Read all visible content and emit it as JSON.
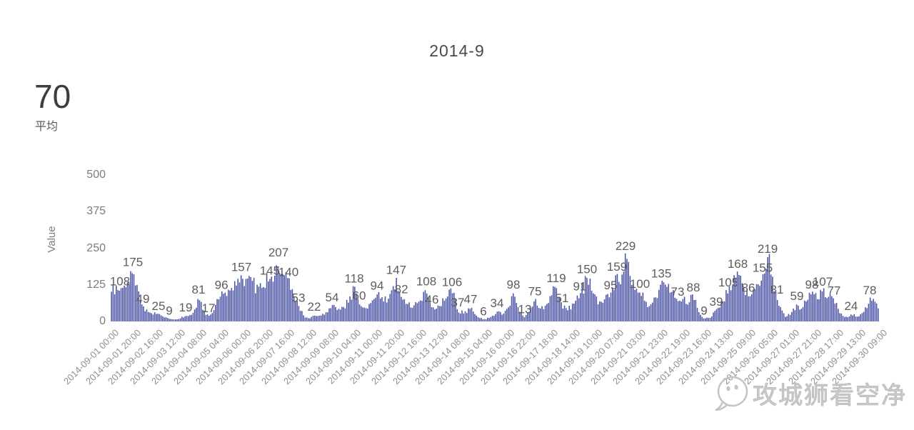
{
  "summary": {
    "average_value": "70",
    "average_label": "平均"
  },
  "watermark": {
    "text": "攻城狮看空净",
    "icon": "wechat-chat-bubble-face-icon"
  },
  "colors": {
    "bar": "#4b53a5",
    "value_label": "#5c5c5c",
    "axis_text": "#7d7d7d",
    "x_tick_text": "#8f8f8f",
    "title_text": "#4a4a4a",
    "watermark_gray": "#c4c4c4"
  },
  "chart_data": {
    "type": "bar",
    "title": "2014-9",
    "subtitle": "",
    "xlabel": "",
    "ylabel": "Value",
    "ylim": [
      0,
      500
    ],
    "yticks": [
      0,
      125,
      250,
      375,
      500
    ],
    "grid": false,
    "legend": false,
    "average_shown": 70,
    "x_tick_labels": [
      "2014-09-01 00:00",
      "2014-09-01 20:00",
      "2014-09-02 16:00",
      "2014-09-03 12:00",
      "2014-09-04 08:00",
      "2014-09-05 04:00",
      "2014-09-06 00:00",
      "2014-09-06 20:00",
      "2014-09-07 16:00",
      "2014-09-08 12:00",
      "2014-09-09 08:00",
      "2014-09-10 04:00",
      "2014-09-11 00:00",
      "2014-09-11 20:00",
      "2014-09-12 16:00",
      "2014-09-13 12:00",
      "2014-09-14 08:00",
      "2014-09-15 04:00",
      "2014-09-16 00:00",
      "2014-09-16 22:00",
      "2014-09-17 18:00",
      "2014-09-18 14:00",
      "2014-09-19 10:00",
      "2014-09-20 07:00",
      "2014-09-21 03:00",
      "2014-09-21 23:00",
      "2014-09-22 19:00",
      "2014-09-23 16:00",
      "2014-09-24 13:00",
      "2014-09-25 09:00",
      "2014-09-26 05:00",
      "2014-09-27 01:00",
      "2014-09-27 21:00",
      "2014-09-28 17:00",
      "2014-09-29 13:00",
      "2014-09-30 09:00"
    ],
    "bar_value_labels": [
      108,
      175,
      49,
      25,
      9,
      19,
      81,
      17,
      96,
      157,
      145,
      207,
      140,
      53,
      22,
      54,
      118,
      60,
      94,
      147,
      82,
      108,
      46,
      106,
      37,
      47,
      6,
      34,
      98,
      13,
      75,
      119,
      51,
      91,
      150,
      95,
      159,
      229,
      100,
      135,
      73,
      88,
      9,
      39,
      105,
      168,
      86,
      155,
      219,
      81,
      59,
      98,
      107,
      77,
      24,
      78
    ],
    "profile": [
      [
        0.0,
        105,
        null
      ],
      [
        0.0121,
        108,
        "108"
      ],
      [
        0.0214,
        130,
        null
      ],
      [
        0.0288,
        175,
        "175"
      ],
      [
        0.0353,
        118,
        null
      ],
      [
        0.0418,
        49,
        "49"
      ],
      [
        0.0511,
        30,
        null
      ],
      [
        0.0623,
        25,
        "25"
      ],
      [
        0.0697,
        14,
        null
      ],
      [
        0.0762,
        9,
        "9"
      ],
      [
        0.0864,
        7,
        null
      ],
      [
        0.0976,
        19,
        "19"
      ],
      [
        0.1069,
        28,
        null
      ],
      [
        0.1143,
        81,
        "81"
      ],
      [
        0.1208,
        38,
        null
      ],
      [
        0.1273,
        17,
        "17"
      ],
      [
        0.1348,
        42,
        null
      ],
      [
        0.1441,
        96,
        "96"
      ],
      [
        0.1533,
        108,
        null
      ],
      [
        0.1626,
        135,
        null
      ],
      [
        0.1701,
        157,
        "157"
      ],
      [
        0.1775,
        148,
        null
      ],
      [
        0.1849,
        132,
        null
      ],
      [
        0.1924,
        118,
        null
      ],
      [
        0.1998,
        128,
        null
      ],
      [
        0.2072,
        145,
        "145"
      ],
      [
        0.2138,
        158,
        null
      ],
      [
        0.2184,
        207,
        "207"
      ],
      [
        0.2249,
        150,
        null
      ],
      [
        0.2314,
        140,
        "140"
      ],
      [
        0.2379,
        95,
        null
      ],
      [
        0.2444,
        53,
        "53"
      ],
      [
        0.2519,
        16,
        null
      ],
      [
        0.2584,
        9,
        null
      ],
      [
        0.2649,
        22,
        "22"
      ],
      [
        0.2732,
        17,
        null
      ],
      [
        0.2807,
        32,
        null
      ],
      [
        0.2881,
        54,
        "54"
      ],
      [
        0.2955,
        36,
        null
      ],
      [
        0.303,
        48,
        null
      ],
      [
        0.3104,
        72,
        null
      ],
      [
        0.3169,
        118,
        "118"
      ],
      [
        0.3234,
        60,
        "60"
      ],
      [
        0.3309,
        46,
        null
      ],
      [
        0.3383,
        62,
        null
      ],
      [
        0.3467,
        94,
        "94"
      ],
      [
        0.355,
        68,
        null
      ],
      [
        0.3643,
        92,
        null
      ],
      [
        0.3717,
        147,
        "147"
      ],
      [
        0.3783,
        82,
        "82"
      ],
      [
        0.3857,
        58,
        null
      ],
      [
        0.3941,
        52,
        null
      ],
      [
        0.4024,
        70,
        null
      ],
      [
        0.4108,
        108,
        "108"
      ],
      [
        0.4182,
        46,
        "46"
      ],
      [
        0.4266,
        52,
        null
      ],
      [
        0.4359,
        72,
        null
      ],
      [
        0.4442,
        106,
        "106"
      ],
      [
        0.4517,
        37,
        "37"
      ],
      [
        0.46,
        28,
        null
      ],
      [
        0.4684,
        47,
        "47"
      ],
      [
        0.4768,
        18,
        null
      ],
      [
        0.4851,
        6,
        "6"
      ],
      [
        0.4944,
        14,
        null
      ],
      [
        0.5028,
        34,
        "34"
      ],
      [
        0.5102,
        22,
        null
      ],
      [
        0.5177,
        48,
        null
      ],
      [
        0.5242,
        98,
        "98"
      ],
      [
        0.5316,
        36,
        null
      ],
      [
        0.539,
        13,
        "13"
      ],
      [
        0.5456,
        38,
        null
      ],
      [
        0.5521,
        75,
        "75"
      ],
      [
        0.5595,
        44,
        null
      ],
      [
        0.566,
        56,
        null
      ],
      [
        0.5725,
        82,
        null
      ],
      [
        0.5799,
        119,
        "119"
      ],
      [
        0.5874,
        51,
        "51"
      ],
      [
        0.5948,
        38,
        null
      ],
      [
        0.6022,
        62,
        null
      ],
      [
        0.6106,
        91,
        "91"
      ],
      [
        0.6199,
        150,
        "150"
      ],
      [
        0.6273,
        98,
        null
      ],
      [
        0.6348,
        58,
        null
      ],
      [
        0.6431,
        76,
        null
      ],
      [
        0.6506,
        95,
        "95"
      ],
      [
        0.6589,
        159,
        "159"
      ],
      [
        0.6645,
        128,
        null
      ],
      [
        0.6701,
        229,
        "229"
      ],
      [
        0.6766,
        142,
        null
      ],
      [
        0.6822,
        108,
        null
      ],
      [
        0.6887,
        100,
        "100"
      ],
      [
        0.6961,
        68,
        null
      ],
      [
        0.7026,
        58,
        null
      ],
      [
        0.7091,
        82,
        null
      ],
      [
        0.7166,
        135,
        "135"
      ],
      [
        0.724,
        118,
        null
      ],
      [
        0.7305,
        96,
        null
      ],
      [
        0.7379,
        73,
        "73"
      ],
      [
        0.7444,
        82,
        null
      ],
      [
        0.7509,
        58,
        null
      ],
      [
        0.7584,
        88,
        "88"
      ],
      [
        0.7649,
        32,
        null
      ],
      [
        0.7723,
        9,
        "9"
      ],
      [
        0.7807,
        13,
        null
      ],
      [
        0.7881,
        39,
        "39"
      ],
      [
        0.7965,
        68,
        null
      ],
      [
        0.8039,
        105,
        "105"
      ],
      [
        0.8104,
        132,
        null
      ],
      [
        0.816,
        168,
        "168"
      ],
      [
        0.8225,
        118,
        null
      ],
      [
        0.8299,
        86,
        "86"
      ],
      [
        0.8364,
        108,
        null
      ],
      [
        0.842,
        128,
        null
      ],
      [
        0.8485,
        155,
        "155"
      ],
      [
        0.855,
        219,
        "219"
      ],
      [
        0.8615,
        152,
        null
      ],
      [
        0.8671,
        81,
        "81"
      ],
      [
        0.8736,
        38,
        null
      ],
      [
        0.8792,
        14,
        null
      ],
      [
        0.8857,
        28,
        null
      ],
      [
        0.8931,
        59,
        "59"
      ],
      [
        0.8996,
        46,
        null
      ],
      [
        0.9052,
        68,
        null
      ],
      [
        0.9126,
        98,
        "98"
      ],
      [
        0.9201,
        78,
        null
      ],
      [
        0.9266,
        107,
        "107"
      ],
      [
        0.934,
        88,
        null
      ],
      [
        0.9414,
        77,
        "77"
      ],
      [
        0.9489,
        28,
        null
      ],
      [
        0.9563,
        14,
        null
      ],
      [
        0.9637,
        24,
        "24"
      ],
      [
        0.9721,
        16,
        null
      ],
      [
        0.9795,
        30,
        null
      ],
      [
        0.9879,
        78,
        "78"
      ],
      [
        0.9963,
        58,
        null
      ],
      [
        1.0,
        42,
        null
      ]
    ]
  }
}
